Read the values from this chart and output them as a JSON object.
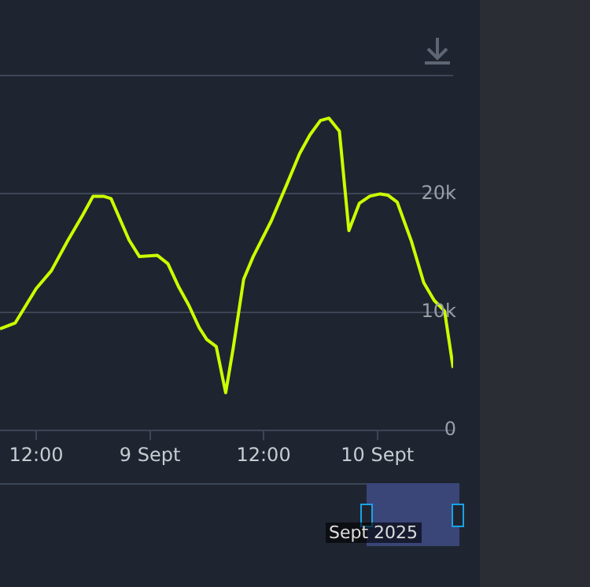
{
  "chart_data": {
    "type": "line",
    "x": [
      "2025-09-08T08:11",
      "2025-09-08T09:48",
      "2025-09-08T12:00",
      "2025-09-08T13:36",
      "2025-09-08T15:18",
      "2025-09-08T16:54",
      "2025-09-08T18:00",
      "2025-09-08T19:06",
      "2025-09-08T19:54",
      "2025-09-08T21:48",
      "2025-09-08T22:54",
      "2025-09-09T00:48",
      "2025-09-09T01:54",
      "2025-09-09T03:00",
      "2025-09-09T04:06",
      "2025-09-09T05:12",
      "2025-09-09T06:00",
      "2025-09-09T07:00",
      "2025-09-09T08:00",
      "2025-09-09T08:48",
      "2025-09-09T09:54",
      "2025-09-09T10:54",
      "2025-09-09T12:48",
      "2025-09-09T14:30",
      "2025-09-09T15:48",
      "2025-09-09T16:54",
      "2025-09-09T18:00",
      "2025-09-09T18:54",
      "2025-09-09T20:00",
      "2025-09-09T21:00",
      "2025-09-09T22:06",
      "2025-09-09T23:12",
      "2025-09-10T00:18",
      "2025-09-10T01:06",
      "2025-09-10T02:06",
      "2025-09-10T03:36",
      "2025-09-10T04:54",
      "2025-09-10T06:00",
      "2025-09-10T07:06",
      "2025-09-10T08:00"
    ],
    "series": [
      {
        "color": "#ccff00",
        "values": [
          8600,
          9100,
          12000,
          13500,
          16000,
          18200,
          19800,
          19800,
          19600,
          16100,
          14700,
          14800,
          14100,
          12200,
          10600,
          8700,
          7700,
          7100,
          3200,
          7000,
          12800,
          14700,
          17700,
          20900,
          23400,
          25000,
          26200,
          26400,
          25300,
          16900,
          19200,
          19800,
          20000,
          19900,
          19300,
          16000,
          12500,
          11000,
          10100,
          5300
        ]
      }
    ],
    "xlim": [
      "2025-09-08T08:11",
      "2025-09-10T08:00"
    ],
    "xticks": [
      {
        "value": "2025-09-08T12:00",
        "label": "12:00"
      },
      {
        "value": "2025-09-09",
        "label": "9 Sept"
      },
      {
        "value": "2025-09-09T12:00",
        "label": "12:00"
      },
      {
        "value": "2025-09-10",
        "label": "10 Sept"
      }
    ],
    "ylim": [
      0,
      30000
    ],
    "yticks": [
      0,
      {
        "value": 10000,
        "label": "10k"
      },
      {
        "value": 20000,
        "label": "20k"
      },
      {
        "value": 30000,
        "label": null
      }
    ],
    "grid": "y",
    "marker": "none",
    "line_style": "solid",
    "annotations": [
      "Sept 2025"
    ]
  }
}
